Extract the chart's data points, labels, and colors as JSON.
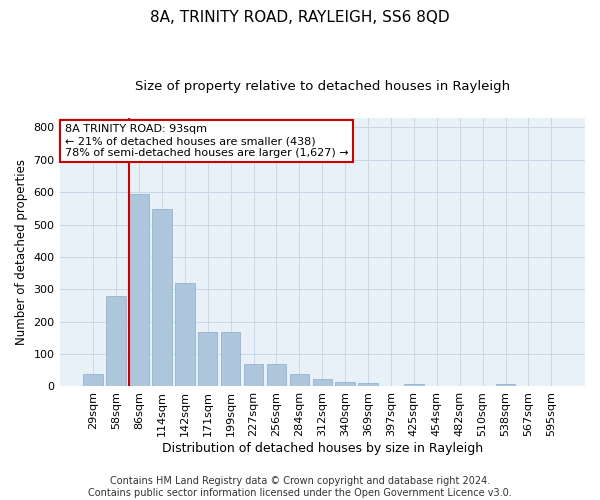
{
  "title1": "8A, TRINITY ROAD, RAYLEIGH, SS6 8QD",
  "title2": "Size of property relative to detached houses in Rayleigh",
  "xlabel": "Distribution of detached houses by size in Rayleigh",
  "ylabel": "Number of detached properties",
  "categories": [
    "29sqm",
    "58sqm",
    "86sqm",
    "114sqm",
    "142sqm",
    "171sqm",
    "199sqm",
    "227sqm",
    "256sqm",
    "284sqm",
    "312sqm",
    "340sqm",
    "369sqm",
    "397sqm",
    "425sqm",
    "454sqm",
    "482sqm",
    "510sqm",
    "538sqm",
    "567sqm",
    "595sqm"
  ],
  "values": [
    38,
    278,
    593,
    547,
    320,
    168,
    168,
    70,
    70,
    38,
    22,
    15,
    12,
    0,
    8,
    0,
    0,
    0,
    8,
    0,
    0
  ],
  "bar_color": "#aec6dc",
  "bar_edge_color": "#8aadcc",
  "vline_color": "#cc0000",
  "annotation_text": "8A TRINITY ROAD: 93sqm\n← 21% of detached houses are smaller (438)\n78% of semi-detached houses are larger (1,627) →",
  "annotation_box_color": "#ffffff",
  "annotation_box_edge": "#cc0000",
  "ylim": [
    0,
    830
  ],
  "yticks": [
    0,
    100,
    200,
    300,
    400,
    500,
    600,
    700,
    800
  ],
  "grid_color": "#c8d8e8",
  "background_color": "#e8f0f8",
  "footer": "Contains HM Land Registry data © Crown copyright and database right 2024.\nContains public sector information licensed under the Open Government Licence v3.0.",
  "title1_fontsize": 11,
  "title2_fontsize": 9.5,
  "xlabel_fontsize": 9,
  "ylabel_fontsize": 8.5,
  "tick_fontsize": 8,
  "footer_fontsize": 7,
  "annotation_fontsize": 8
}
